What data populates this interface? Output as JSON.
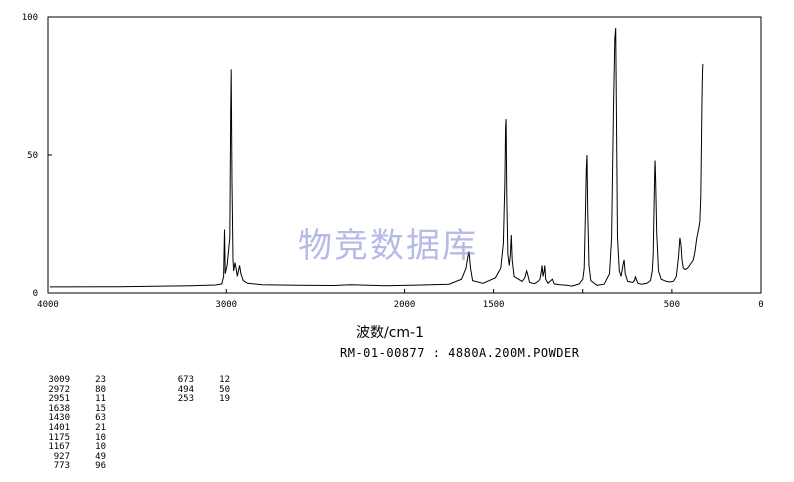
{
  "chart_data": {
    "type": "line",
    "title": "RM-01-00877 : 4880A.200M.POWDER",
    "xlabel": "波数/cm-1",
    "ylabel": "",
    "xlim": [
      4000,
      0
    ],
    "ylim": [
      0,
      100
    ],
    "x_ticks": [
      4000,
      3000,
      2000,
      1500,
      1000,
      500,
      0
    ],
    "x_tick_labels": [
      "4000",
      "3000",
      "2000",
      "1500",
      "",
      "500",
      "0"
    ],
    "y_ticks": [
      0,
      50,
      100
    ],
    "y_tick_labels": [
      "0",
      "50",
      "100"
    ],
    "grid": false,
    "series": [
      {
        "color": "#000000",
        "points": [
          [
            3990,
            2.2
          ],
          [
            3600,
            2.3
          ],
          [
            3200,
            2.6
          ],
          [
            3060,
            2.9
          ],
          [
            3025,
            3.3
          ],
          [
            3015,
            6
          ],
          [
            3010,
            23
          ],
          [
            3006,
            7
          ],
          [
            2995,
            10
          ],
          [
            2980,
            20
          ],
          [
            2975,
            65
          ],
          [
            2972,
            81
          ],
          [
            2968,
            40
          ],
          [
            2962,
            12
          ],
          [
            2958,
            8
          ],
          [
            2951,
            11
          ],
          [
            2945,
            9
          ],
          [
            2938,
            6
          ],
          [
            2925,
            10
          ],
          [
            2918,
            7
          ],
          [
            2905,
            4.5
          ],
          [
            2880,
            3.5
          ],
          [
            2800,
            3.0
          ],
          [
            2600,
            2.8
          ],
          [
            2400,
            2.7
          ],
          [
            2300,
            3.0
          ],
          [
            2100,
            2.6
          ],
          [
            1900,
            2.9
          ],
          [
            1750,
            3.2
          ],
          [
            1680,
            5.0
          ],
          [
            1655,
            9
          ],
          [
            1645,
            13
          ],
          [
            1638,
            15
          ],
          [
            1630,
            9
          ],
          [
            1618,
            4.5
          ],
          [
            1560,
            3.5
          ],
          [
            1490,
            5.5
          ],
          [
            1460,
            9
          ],
          [
            1445,
            18
          ],
          [
            1437,
            40
          ],
          [
            1433,
            60
          ],
          [
            1430,
            63
          ],
          [
            1426,
            35
          ],
          [
            1420,
            14
          ],
          [
            1412,
            10
          ],
          [
            1406,
            14
          ],
          [
            1401,
            21
          ],
          [
            1396,
            12
          ],
          [
            1385,
            6
          ],
          [
            1340,
            4.2
          ],
          [
            1325,
            5.5
          ],
          [
            1315,
            8
          ],
          [
            1310,
            7
          ],
          [
            1298,
            3.8
          ],
          [
            1270,
            3.4
          ],
          [
            1250,
            4.2
          ],
          [
            1240,
            5.0
          ],
          [
            1232,
            8
          ],
          [
            1228,
            10
          ],
          [
            1223,
            6
          ],
          [
            1216,
            8
          ],
          [
            1213,
            10
          ],
          [
            1208,
            5
          ],
          [
            1195,
            3.5
          ],
          [
            1170,
            5
          ],
          [
            1160,
            3.3
          ],
          [
            1130,
            3.0
          ],
          [
            1090,
            2.8
          ],
          [
            1060,
            2.5
          ],
          [
            1020,
            3.3
          ],
          [
            1000,
            5.0
          ],
          [
            992,
            9
          ],
          [
            986,
            25
          ],
          [
            980,
            45
          ],
          [
            976,
            50
          ],
          [
            972,
            30
          ],
          [
            965,
            10
          ],
          [
            955,
            4.5
          ],
          [
            920,
            2.8
          ],
          [
            880,
            3.2
          ],
          [
            850,
            7
          ],
          [
            838,
            20
          ],
          [
            828,
            65
          ],
          [
            820,
            92
          ],
          [
            815,
            96
          ],
          [
            812,
            70
          ],
          [
            805,
            20
          ],
          [
            795,
            8
          ],
          [
            785,
            6
          ],
          [
            775,
            10
          ],
          [
            768,
            12
          ],
          [
            762,
            7
          ],
          [
            748,
            4.2
          ],
          [
            720,
            3.8
          ],
          [
            710,
            4.5
          ],
          [
            704,
            6
          ],
          [
            700,
            5
          ],
          [
            690,
            3.5
          ],
          [
            670,
            3.2
          ],
          [
            640,
            3.5
          ],
          [
            620,
            4.5
          ],
          [
            610,
            8
          ],
          [
            605,
            14
          ],
          [
            600,
            30
          ],
          [
            596,
            45
          ],
          [
            594,
            48
          ],
          [
            591,
            40
          ],
          [
            585,
            22
          ],
          [
            575,
            8
          ],
          [
            560,
            5
          ],
          [
            530,
            4.2
          ],
          [
            510,
            4.0
          ],
          [
            490,
            4.3
          ],
          [
            475,
            6
          ],
          [
            463,
            13
          ],
          [
            455,
            20
          ],
          [
            448,
            17
          ],
          [
            443,
            12
          ],
          [
            436,
            9
          ],
          [
            425,
            8.5
          ],
          [
            412,
            9
          ],
          [
            400,
            10
          ],
          [
            390,
            11
          ],
          [
            380,
            12
          ],
          [
            370,
            15
          ],
          [
            360,
            20
          ],
          [
            350,
            23
          ],
          [
            343,
            26
          ],
          [
            338,
            35
          ],
          [
            334,
            55
          ],
          [
            331,
            70
          ],
          [
            328,
            80
          ],
          [
            326,
            83
          ]
        ]
      }
    ]
  },
  "peak_table": [
    [
      [
        "3009",
        "23"
      ],
      [
        "2972",
        "80"
      ],
      [
        "2951",
        "11"
      ],
      [
        "1638",
        "15"
      ],
      [
        "1430",
        "63"
      ],
      [
        "1401",
        "21"
      ],
      [
        "1175",
        "10"
      ],
      [
        "1167",
        "10"
      ],
      [
        "927",
        "49"
      ],
      [
        "773",
        "96"
      ]
    ],
    [
      [
        "673",
        "12"
      ],
      [
        "494",
        "50"
      ],
      [
        "253",
        "19"
      ]
    ]
  ],
  "watermark": "物竞数据库",
  "colors": {
    "line": "#000000",
    "axis": "#000000",
    "watermark": "#7882d2"
  }
}
